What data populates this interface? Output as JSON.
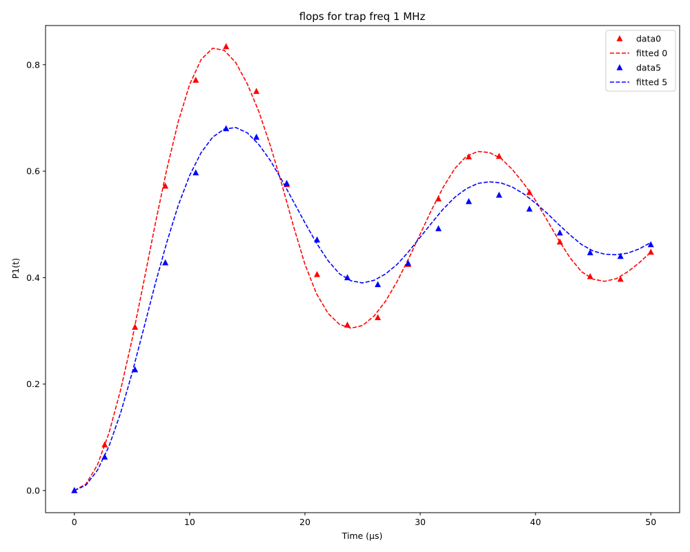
{
  "chart_data": {
    "type": "line",
    "title": "flops for trap freq 1 MHz",
    "xlabel": "Time (µs)",
    "ylabel": "P1(t)",
    "xlim": [
      -2.5,
      52.5
    ],
    "ylim": [
      -0.0416,
      0.8736
    ],
    "xticks": [
      0,
      10,
      20,
      30,
      40,
      50
    ],
    "yticks": [
      0.0,
      0.2,
      0.4,
      0.6,
      0.8
    ],
    "xtick_labels": [
      "0",
      "10",
      "20",
      "30",
      "40",
      "50"
    ],
    "ytick_labels": [
      "0.0",
      "0.2",
      "0.4",
      "0.6",
      "0.8"
    ],
    "grid": false,
    "legend_position": "top-right",
    "series": [
      {
        "name": "data0",
        "kind": "scatter",
        "marker": "triangle-up",
        "color": "#ff0000",
        "x": [
          0,
          2.63,
          5.26,
          7.89,
          10.53,
          13.16,
          15.79,
          18.42,
          21.05,
          23.68,
          26.32,
          28.95,
          31.58,
          34.21,
          36.84,
          39.47,
          42.11,
          44.74,
          47.37,
          50
        ],
        "y": [
          0.0,
          0.086,
          0.307,
          0.572,
          0.771,
          0.834,
          0.75,
          0.575,
          0.406,
          0.311,
          0.325,
          0.425,
          0.548,
          0.627,
          0.628,
          0.56,
          0.467,
          0.402,
          0.397,
          0.448
        ]
      },
      {
        "name": "fitted 0",
        "kind": "line",
        "dash": "dashed",
        "color": "#ff0000",
        "x": [
          0,
          1,
          2,
          3,
          4,
          5,
          6,
          7,
          8,
          9,
          10,
          11,
          12,
          13,
          14,
          15,
          16,
          17,
          18,
          19,
          20,
          21,
          22,
          23,
          24,
          25,
          26,
          27,
          28,
          29,
          30,
          31,
          32,
          33,
          34,
          35,
          36,
          37,
          38,
          39,
          40,
          41,
          42,
          43,
          44,
          45,
          46,
          47,
          48,
          49,
          50
        ],
        "y": [
          0.0,
          0.012,
          0.048,
          0.108,
          0.188,
          0.283,
          0.39,
          0.499,
          0.602,
          0.692,
          0.763,
          0.81,
          0.831,
          0.827,
          0.804,
          0.764,
          0.712,
          0.648,
          0.575,
          0.497,
          0.425,
          0.37,
          0.333,
          0.312,
          0.305,
          0.31,
          0.328,
          0.356,
          0.393,
          0.436,
          0.482,
          0.528,
          0.57,
          0.605,
          0.628,
          0.637,
          0.635,
          0.624,
          0.603,
          0.576,
          0.545,
          0.508,
          0.471,
          0.437,
          0.411,
          0.397,
          0.393,
          0.398,
          0.411,
          0.428,
          0.448
        ]
      },
      {
        "name": "data5",
        "kind": "scatter",
        "marker": "triangle-up",
        "color": "#0000ff",
        "x": [
          0,
          2.63,
          5.26,
          7.89,
          10.53,
          13.16,
          15.79,
          18.42,
          21.05,
          23.68,
          26.32,
          28.95,
          31.58,
          34.21,
          36.84,
          39.47,
          42.11,
          44.74,
          47.37,
          50
        ],
        "y": [
          0.0,
          0.063,
          0.227,
          0.428,
          0.597,
          0.68,
          0.664,
          0.577,
          0.471,
          0.4,
          0.387,
          0.427,
          0.492,
          0.543,
          0.555,
          0.529,
          0.484,
          0.447,
          0.44,
          0.462
        ]
      },
      {
        "name": "fitted 5",
        "kind": "line",
        "dash": "dashed",
        "color": "#0000ff",
        "x": [
          0,
          1,
          2,
          3,
          4,
          5,
          6,
          7,
          8,
          9,
          10,
          11,
          12,
          13,
          14,
          15,
          16,
          17,
          18,
          19,
          20,
          21,
          22,
          23,
          24,
          25,
          26,
          27,
          28,
          29,
          30,
          31,
          32,
          33,
          34,
          35,
          36,
          37,
          38,
          39,
          40,
          41,
          42,
          43,
          44,
          45,
          46,
          47,
          48,
          49,
          50
        ],
        "y": [
          0.0,
          0.01,
          0.038,
          0.083,
          0.145,
          0.22,
          0.303,
          0.387,
          0.465,
          0.535,
          0.592,
          0.635,
          0.664,
          0.679,
          0.682,
          0.672,
          0.65,
          0.62,
          0.583,
          0.543,
          0.503,
          0.465,
          0.432,
          0.407,
          0.394,
          0.39,
          0.395,
          0.407,
          0.425,
          0.449,
          0.476,
          0.503,
          0.529,
          0.551,
          0.567,
          0.577,
          0.58,
          0.578,
          0.57,
          0.557,
          0.54,
          0.521,
          0.5,
          0.48,
          0.462,
          0.45,
          0.444,
          0.443,
          0.446,
          0.454,
          0.466
        ]
      }
    ]
  }
}
